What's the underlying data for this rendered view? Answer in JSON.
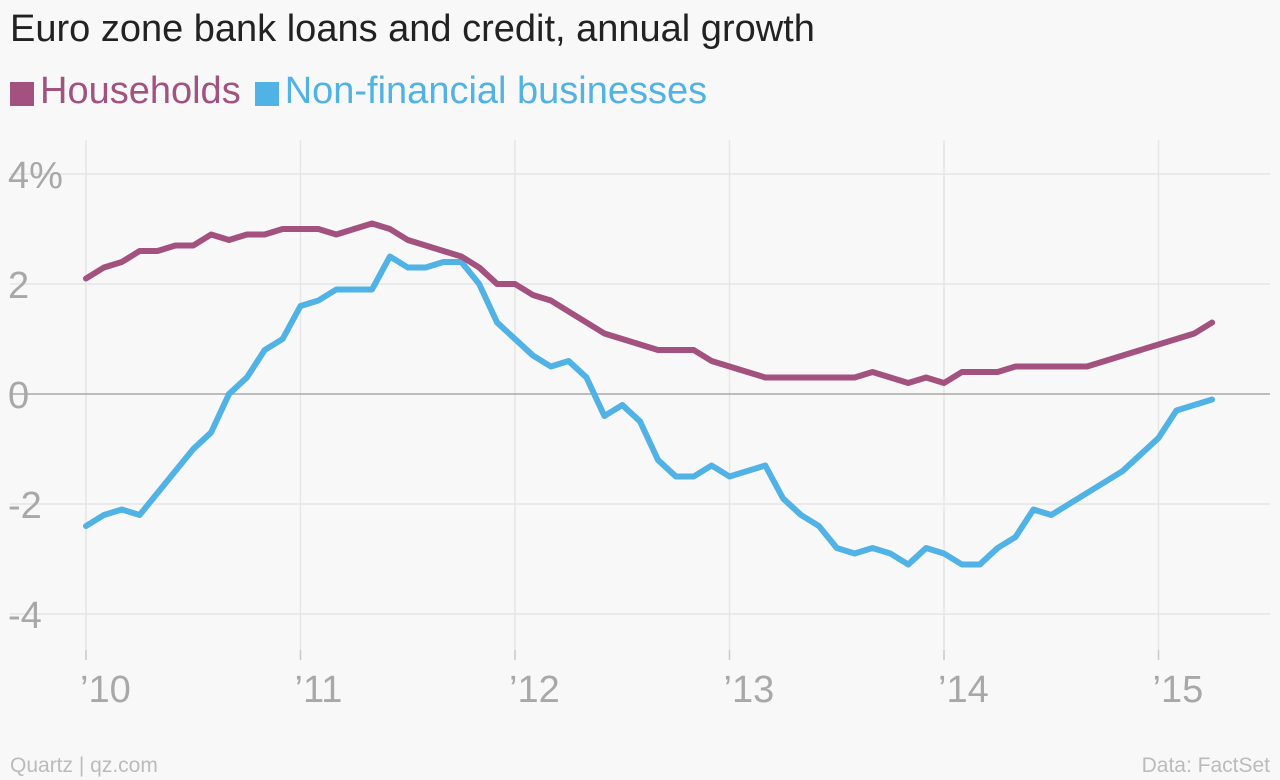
{
  "chart_data": {
    "type": "line",
    "title": "Euro zone bank loans and credit, annual growth",
    "y_ticks": [
      "4%",
      "2",
      "0",
      "-2",
      "-4"
    ],
    "y_tick_values": [
      4,
      2,
      0,
      -2,
      -4
    ],
    "ylim": [
      -4.6,
      4.4
    ],
    "x_ticks": [
      "’10",
      "’11",
      "’12",
      "’13",
      "’14",
      "’15"
    ],
    "x_tick_values": [
      2010,
      2011,
      2012,
      2013,
      2014,
      2015
    ],
    "xlim": [
      2009.9,
      2015.5
    ],
    "grid": true,
    "legend_position": "top-left",
    "series": [
      {
        "name": "Households",
        "color": "#a3527f",
        "x": [
          2010.0,
          2010.0833,
          2010.1667,
          2010.25,
          2010.3333,
          2010.4167,
          2010.5,
          2010.5833,
          2010.6667,
          2010.75,
          2010.8333,
          2010.9167,
          2011.0,
          2011.0833,
          2011.1667,
          2011.25,
          2011.3333,
          2011.4167,
          2011.5,
          2011.5833,
          2011.6667,
          2011.75,
          2011.8333,
          2011.9167,
          2012.0,
          2012.0833,
          2012.1667,
          2012.25,
          2012.3333,
          2012.4167,
          2012.5,
          2012.5833,
          2012.6667,
          2012.75,
          2012.8333,
          2012.9167,
          2013.0,
          2013.0833,
          2013.1667,
          2013.25,
          2013.3333,
          2013.4167,
          2013.5,
          2013.5833,
          2013.6667,
          2013.75,
          2013.8333,
          2013.9167,
          2014.0,
          2014.0833,
          2014.1667,
          2014.25,
          2014.3333,
          2014.4167,
          2014.5,
          2014.5833,
          2014.6667,
          2014.75,
          2014.8333,
          2014.9167,
          2015.0,
          2015.0833,
          2015.1667,
          2015.25
        ],
        "values": [
          2.1,
          2.3,
          2.4,
          2.6,
          2.6,
          2.7,
          2.7,
          2.9,
          2.8,
          2.9,
          2.9,
          3.0,
          3.0,
          3.0,
          2.9,
          3.0,
          3.1,
          3.0,
          2.8,
          2.7,
          2.6,
          2.5,
          2.3,
          2.0,
          2.0,
          1.8,
          1.7,
          1.5,
          1.3,
          1.1,
          1.0,
          0.9,
          0.8,
          0.8,
          0.8,
          0.6,
          0.5,
          0.4,
          0.3,
          0.3,
          0.3,
          0.3,
          0.3,
          0.3,
          0.4,
          0.3,
          0.2,
          0.3,
          0.2,
          0.4,
          0.4,
          0.4,
          0.5,
          0.5,
          0.5,
          0.5,
          0.5,
          0.6,
          0.7,
          0.8,
          0.9,
          1.0,
          1.1,
          1.3
        ]
      },
      {
        "name": "Non-financial businesses",
        "color": "#51b2e5",
        "x": [
          2010.0,
          2010.0833,
          2010.1667,
          2010.25,
          2010.3333,
          2010.4167,
          2010.5,
          2010.5833,
          2010.6667,
          2010.75,
          2010.8333,
          2010.9167,
          2011.0,
          2011.0833,
          2011.1667,
          2011.25,
          2011.3333,
          2011.4167,
          2011.5,
          2011.5833,
          2011.6667,
          2011.75,
          2011.8333,
          2011.9167,
          2012.0,
          2012.0833,
          2012.1667,
          2012.25,
          2012.3333,
          2012.4167,
          2012.5,
          2012.5833,
          2012.6667,
          2012.75,
          2012.8333,
          2012.9167,
          2013.0,
          2013.0833,
          2013.1667,
          2013.25,
          2013.3333,
          2013.4167,
          2013.5,
          2013.5833,
          2013.6667,
          2013.75,
          2013.8333,
          2013.9167,
          2014.0,
          2014.0833,
          2014.1667,
          2014.25,
          2014.3333,
          2014.4167,
          2014.5,
          2014.5833,
          2014.6667,
          2014.75,
          2014.8333,
          2014.9167,
          2015.0,
          2015.0833,
          2015.1667,
          2015.25
        ],
        "values": [
          -2.4,
          -2.2,
          -2.1,
          -2.2,
          -1.8,
          -1.4,
          -1.0,
          -0.7,
          0.0,
          0.3,
          0.8,
          1.0,
          1.6,
          1.7,
          1.9,
          1.9,
          1.9,
          2.5,
          2.3,
          2.3,
          2.4,
          2.4,
          2.0,
          1.3,
          1.0,
          0.7,
          0.5,
          0.6,
          0.3,
          -0.4,
          -0.2,
          -0.5,
          -1.2,
          -1.5,
          -1.5,
          -1.3,
          -1.5,
          -1.4,
          -1.3,
          -1.9,
          -2.2,
          -2.4,
          -2.8,
          -2.9,
          -2.8,
          -2.9,
          -3.1,
          -2.8,
          -2.9,
          -3.1,
          -3.1,
          -2.8,
          -2.6,
          -2.1,
          -2.2,
          -2.0,
          -1.8,
          -1.6,
          -1.4,
          -1.1,
          -0.8,
          -0.3,
          -0.2,
          -0.1
        ]
      }
    ]
  },
  "footer": {
    "source_left": "Quartz | qz.com",
    "source_right": "Data: FactSet"
  }
}
